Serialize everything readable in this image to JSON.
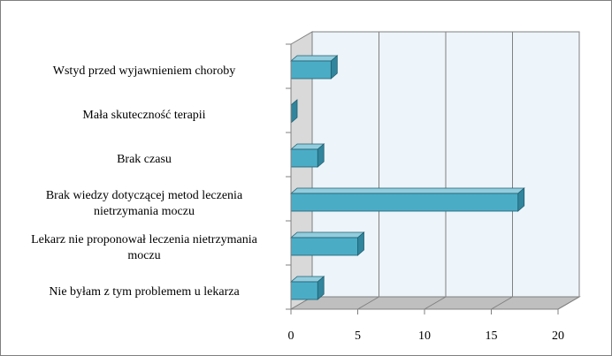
{
  "chart_data": {
    "type": "bar",
    "orientation": "horizontal",
    "style": "3d",
    "categories": [
      [
        "Wstyd przed wyjawnieniem choroby"
      ],
      [
        "Mała skuteczność terapii"
      ],
      [
        "Brak czasu"
      ],
      [
        "Brak wiedzy dotyczącej metod leczenia",
        "nietrzymania moczu"
      ],
      [
        "Lekarz nie proponował leczenia nietrzymania",
        "moczu"
      ],
      [
        "Nie byłam z tym problemem u lekarza"
      ]
    ],
    "values": [
      3,
      0,
      2,
      17,
      5,
      2
    ],
    "xlim": [
      0,
      20
    ],
    "xticks": [
      0,
      5,
      10,
      15,
      20
    ],
    "grid": true,
    "legend": "none",
    "colors": {
      "bar_front": "#4bacc6",
      "bar_top": "#93cddd",
      "bar_side": "#31859c",
      "bar_edge": "#1f5f70",
      "plot_back": "#edf4fa",
      "plot_floor": "#bfbfbf",
      "plot_wall": "#d9d9d9",
      "gridline": "#808080"
    }
  }
}
